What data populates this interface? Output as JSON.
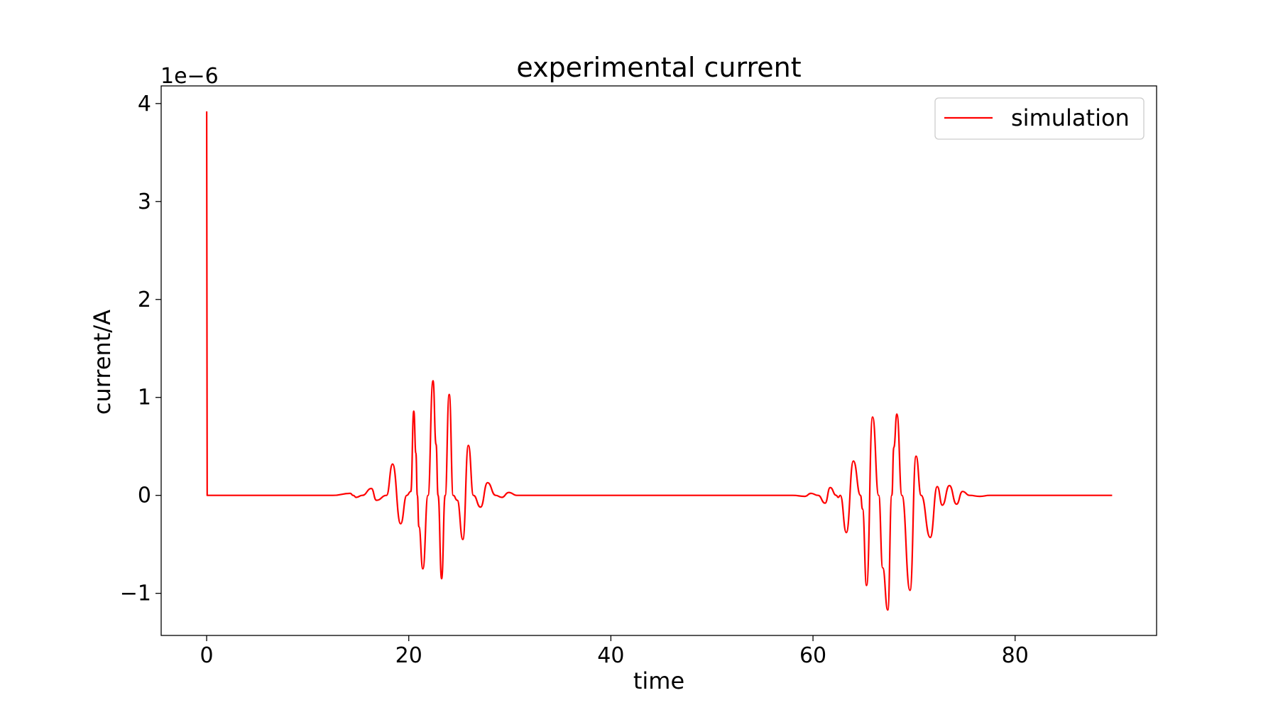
{
  "chart_data": {
    "type": "line",
    "title": "experimental current",
    "xlabel": "time",
    "ylabel": "current/A",
    "y_offset_label": "1e−6",
    "xlim": [
      -4.5,
      94.0
    ],
    "ylim": [
      -1.43,
      4.18
    ],
    "xticks": [
      0,
      20,
      40,
      60,
      80
    ],
    "xtick_labels": [
      "0",
      "20",
      "40",
      "60",
      "80"
    ],
    "yticks": [
      -1,
      0,
      1,
      2,
      3,
      4
    ],
    "ytick_labels": [
      "−1",
      "0",
      "1",
      "2",
      "3",
      "4"
    ],
    "grid": false,
    "legend": {
      "position": "top-right",
      "entries": [
        "simulation"
      ]
    },
    "series": [
      {
        "name": "simulation",
        "color": "#ff0000",
        "x": [
          0,
          0.05,
          12.5,
          14.2,
          14.5,
          14.8,
          15.4,
          16.3,
          16.8,
          17.8,
          18.4,
          19.2,
          19.8,
          20.2,
          20.5,
          20.7,
          20.85,
          21.0,
          21.4,
          21.9,
          22.4,
          22.7,
          22.9,
          23.25,
          23.6,
          24.0,
          24.4,
          24.8,
          25.35,
          25.9,
          26.4,
          27.1,
          27.8,
          28.6,
          29.2,
          29.9,
          30.7,
          31.2,
          32.0,
          58.0,
          59.2,
          59.8,
          60.5,
          61.2,
          61.7,
          62.3,
          62.5,
          62.7,
          63.3,
          64.0,
          64.7,
          64.9,
          65.3,
          65.9,
          66.5,
          66.9,
          67.4,
          67.8,
          68.0,
          68.3,
          68.8,
          69.6,
          70.2,
          70.7,
          71.6,
          72.3,
          72.8,
          73.5,
          74.2,
          74.8,
          75.5,
          76.5,
          77.5,
          89.6
        ],
        "y": [
          3.92,
          0.0,
          0.0,
          0.02,
          0.0,
          -0.02,
          0.0,
          0.07,
          -0.05,
          0.0,
          0.32,
          -0.29,
          0.0,
          0.04,
          0.86,
          0.43,
          0.0,
          -0.32,
          -0.75,
          0.0,
          1.17,
          0.52,
          0.0,
          -0.85,
          0.0,
          1.03,
          0.0,
          -0.05,
          -0.45,
          0.51,
          0.0,
          -0.12,
          0.13,
          0.0,
          -0.02,
          0.03,
          0.0,
          0.0,
          0.0,
          0.0,
          -0.01,
          0.02,
          0.0,
          -0.08,
          0.08,
          0.0,
          -0.02,
          0.0,
          -0.38,
          0.35,
          0.0,
          -0.14,
          -0.92,
          0.8,
          0.0,
          -0.74,
          -1.17,
          0.0,
          0.49,
          0.83,
          0.0,
          -0.97,
          0.4,
          0.0,
          -0.43,
          0.09,
          -0.1,
          0.1,
          -0.09,
          0.04,
          0.0,
          -0.01,
          0.0,
          0.0
        ]
      }
    ]
  }
}
